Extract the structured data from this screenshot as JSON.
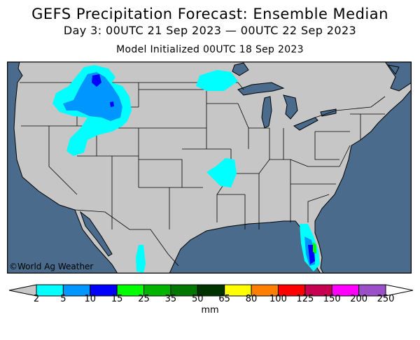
{
  "header": {
    "title": "GEFS Precipitation Forecast: Ensemble Median",
    "subtitle": "Day 3: 00UTC 21 Sep 2023 — 00UTC 22 Sep 2023",
    "initialized": "Model Initialized 00UTC 18 Sep 2023"
  },
  "map": {
    "watermark": "©World Ag Weather",
    "colors": {
      "ocean": "#4a6b8c",
      "land": "#c6c6c6",
      "border": "#000000"
    },
    "precip_areas": [
      {
        "region": "Northern Rockies / Idaho-Montana",
        "max_class": "10-15"
      },
      {
        "region": "Minnesota",
        "max_class": "2-5"
      },
      {
        "region": "Arkansas / Missouri",
        "max_class": "2-5"
      },
      {
        "region": "Florida peninsula",
        "max_class": "15-25"
      },
      {
        "region": "Western Mexico",
        "max_class": "2-5"
      }
    ]
  },
  "colorbar": {
    "unit": "mm",
    "labels": [
      "2",
      "5",
      "10",
      "15",
      "25",
      "35",
      "50",
      "65",
      "80",
      "100",
      "125",
      "150",
      "200",
      "250"
    ],
    "colors": [
      "#00ffff",
      "#0096ff",
      "#0000ff",
      "#00ff00",
      "#00b400",
      "#007800",
      "#003200",
      "#ffff00",
      "#ff8000",
      "#ff0000",
      "#c80050",
      "#ff00ff",
      "#9b50c8"
    ],
    "below_color": "#c8c8c8",
    "above_color": "#ffffff"
  }
}
